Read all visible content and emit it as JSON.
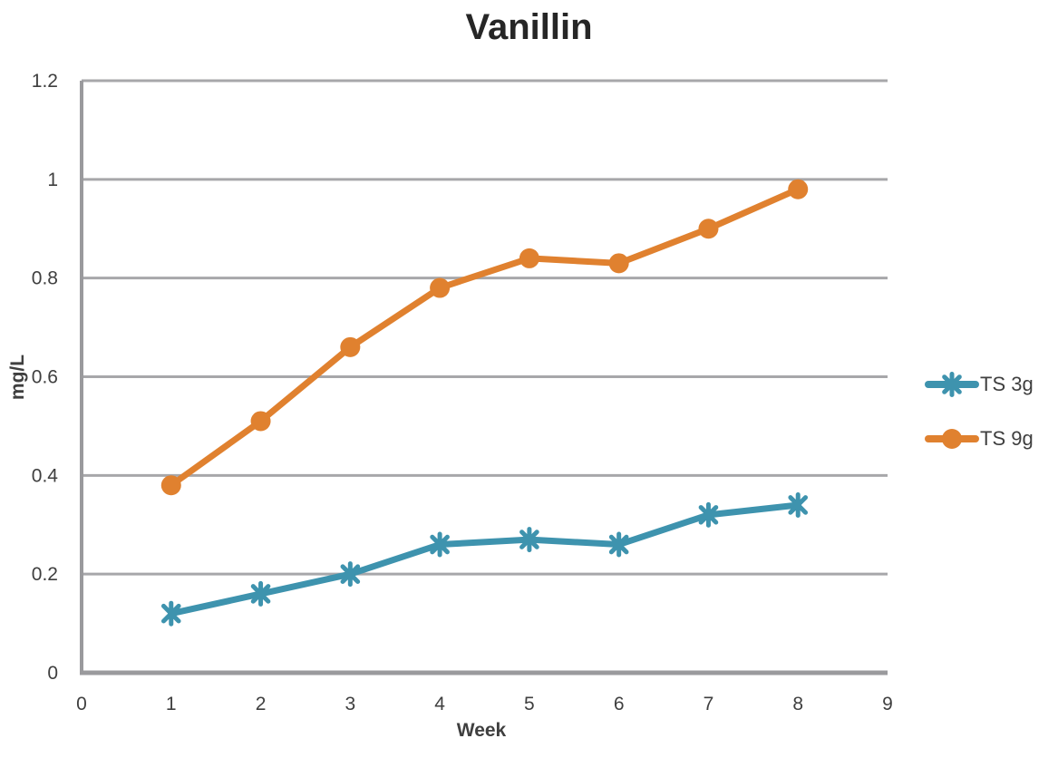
{
  "chart_data": {
    "type": "line",
    "title": "Vanillin",
    "xlabel": "Week",
    "ylabel": "mg/L",
    "xlim": [
      0,
      9
    ],
    "ylim": [
      0,
      1.2
    ],
    "grid": true,
    "legend_position": "right",
    "x_tick_values": [
      0,
      1,
      2,
      3,
      4,
      5,
      6,
      7,
      8,
      9
    ],
    "x_tick_labels": [
      "0",
      "1",
      "2",
      "3",
      "4",
      "5",
      "6",
      "7",
      "8",
      "9"
    ],
    "y_tick_values": [
      0,
      0.2,
      0.4,
      0.6,
      0.8,
      1,
      1.2
    ],
    "y_tick_labels": [
      "0",
      "0.2",
      "0.4",
      "0.6",
      "0.8",
      "1",
      "1.2"
    ],
    "x": [
      1,
      2,
      3,
      4,
      5,
      6,
      7,
      8
    ],
    "series": [
      {
        "name": "TS 3g",
        "color": "#3E93AE",
        "marker": "asterisk",
        "values": [
          0.12,
          0.16,
          0.2,
          0.26,
          0.27,
          0.26,
          0.32,
          0.34
        ]
      },
      {
        "name": "TS 9g",
        "color": "#E0812F",
        "marker": "circle",
        "values": [
          0.38,
          0.51,
          0.66,
          0.78,
          0.84,
          0.83,
          0.9,
          0.98
        ]
      }
    ]
  },
  "colors": {
    "gridline": "#A7A7AA",
    "axis": "#9A9A9D",
    "tick_text": "#3F3F3F",
    "title_text": "#262626"
  }
}
